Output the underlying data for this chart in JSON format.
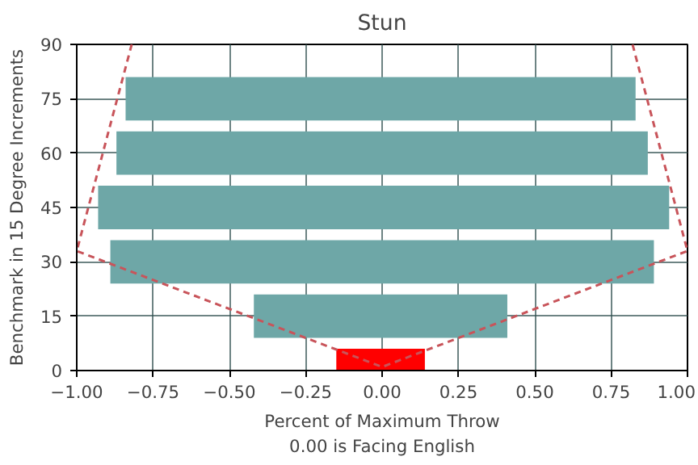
{
  "chart_data": {
    "type": "bar",
    "orientation": "horizontal",
    "title": "Stun",
    "xlabel": "Percent of Maximum Throw\n0.00 is Facing English",
    "ylabel": "Benchmark in 15 Degree Increments",
    "series": [
      {
        "x": [
          0
        ],
        "base": [
          -0.15
        ],
        "values": [
          0.29
        ],
        "color": "#ff0000"
      },
      {
        "x": [
          15,
          30,
          45,
          60,
          75
        ],
        "base": [
          -0.42,
          -0.89,
          -0.93,
          -0.87,
          -0.84
        ],
        "values": [
          0.83,
          1.78,
          1.87,
          1.74,
          1.67
        ],
        "color": "#6ea7a7"
      },
      {
        "type": "line",
        "x": [
          90,
          33,
          1,
          33,
          90
        ],
        "values": [
          -0.82,
          -1.0,
          0.0,
          1.0,
          0.82
        ],
        "color": "#c8545a",
        "line_style": "dashed"
      }
    ],
    "xlim": [
      -1,
      1
    ],
    "ylim": [
      0,
      90
    ],
    "xticks": [
      {
        "value": -1,
        "label": "−1.00"
      },
      {
        "value": -0.75,
        "label": "−0.75"
      },
      {
        "value": -0.5,
        "label": "−0.50"
      },
      {
        "value": -0.25,
        "label": "−0.25"
      },
      {
        "value": 0,
        "label": "0.00"
      },
      {
        "value": 0.25,
        "label": "0.25"
      },
      {
        "value": 0.5,
        "label": "0.50"
      },
      {
        "value": 0.75,
        "label": "0.75"
      },
      {
        "value": 1,
        "label": "1.00"
      }
    ],
    "yticks": [
      0,
      15,
      30,
      45,
      60,
      75,
      90
    ],
    "grid": true
  }
}
